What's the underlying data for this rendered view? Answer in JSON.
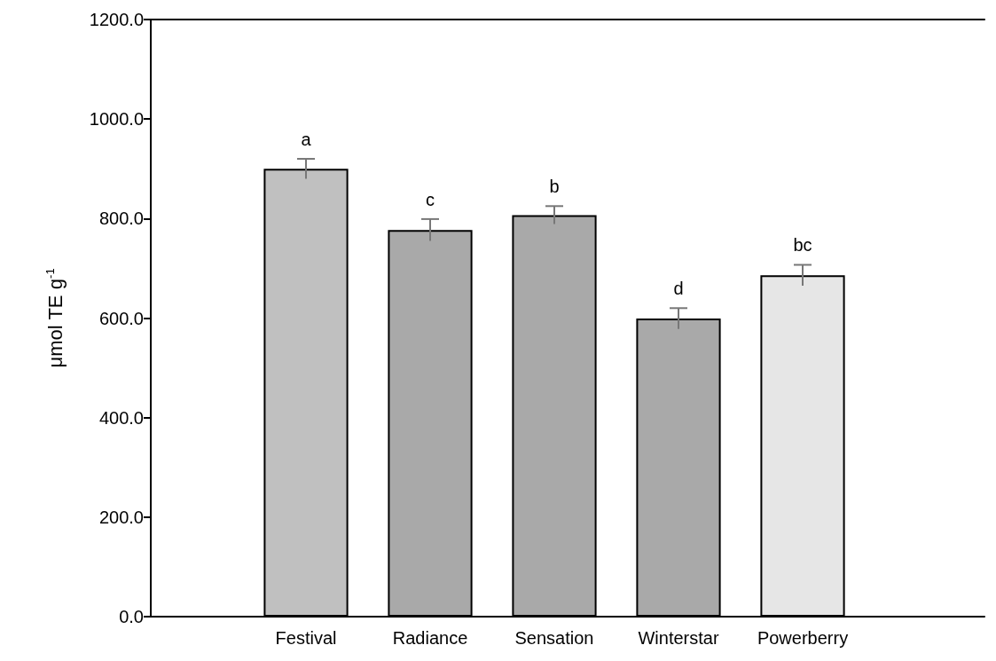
{
  "chart_data": {
    "type": "bar",
    "ylabel": "μmol TE g$^{-1}$",
    "categories": [
      "Festival",
      "Radiance",
      "Sensation",
      "Winterstar",
      "Powerberry"
    ],
    "values": [
      900,
      777,
      807,
      599,
      686
    ],
    "errors": [
      20,
      22,
      18,
      21,
      21
    ],
    "colors": [
      "#c0c0c0",
      "#a9a9a9",
      "#a9a9a9",
      "#a9a9a9",
      "#e6e6e6"
    ],
    "ylim": [
      0,
      1200
    ],
    "yticks": [
      {
        "value": 0,
        "label": "0.0"
      },
      {
        "value": 200,
        "label": "200.0"
      },
      {
        "value": 400,
        "label": "400.0"
      },
      {
        "value": 600,
        "label": "600.0"
      },
      {
        "value": 800,
        "label": "800.0"
      },
      {
        "value": 1000,
        "label": "1000.0"
      },
      {
        "value": 1200,
        "label": "1200.0"
      }
    ],
    "grid": false,
    "annotations": [
      "a",
      "c",
      "b",
      "d",
      "bc"
    ]
  }
}
